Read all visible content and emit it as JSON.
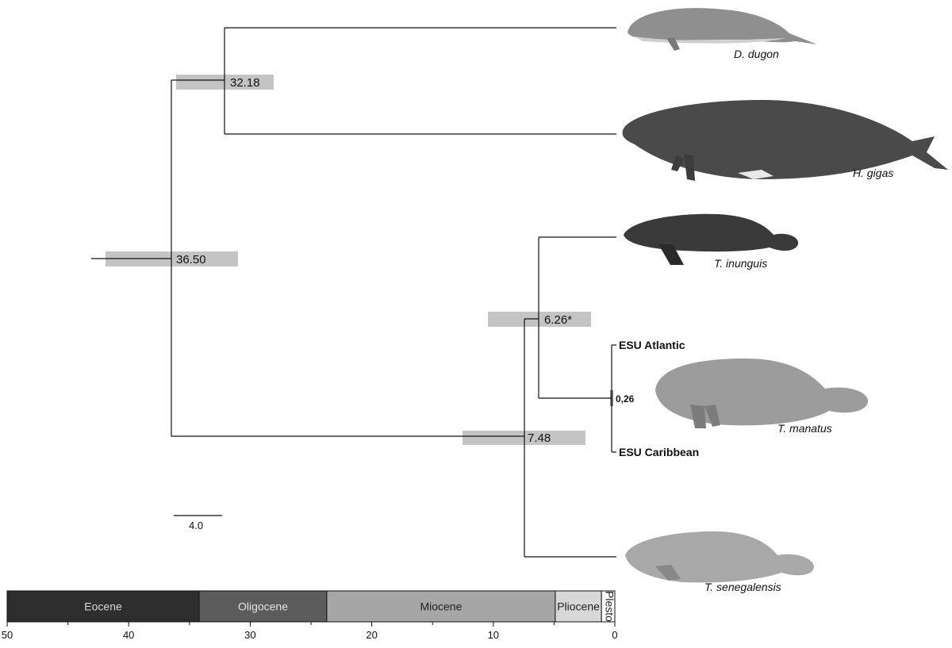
{
  "nodes": [
    {
      "id": "root",
      "age": 36.5,
      "label": "36.50"
    },
    {
      "id": "dugongidae",
      "age": 32.18,
      "label": "32.18"
    },
    {
      "id": "trichechus",
      "age": 7.48,
      "label": "7.48"
    },
    {
      "id": "inunguis_manatus",
      "age": 6.26,
      "label": "6.26*"
    },
    {
      "id": "manatus_esu",
      "label": "0,26"
    }
  ],
  "taxa": {
    "dugon": "D. dugon",
    "gigas": "H. gigas",
    "inunguis": "T. inunguis",
    "manatus": "T. manatus",
    "senegalensis": "T. senegalensis"
  },
  "esu": {
    "atlantic": "ESU Atlantic",
    "caribbean": "ESU Caribbean"
  },
  "scale_bar": "4.0",
  "epochs": [
    {
      "name": "Eocene",
      "start": 50,
      "end": 34.2,
      "color": "#2e2e2e",
      "text_color": "#d8d8d8"
    },
    {
      "name": "Oligocene",
      "start": 34.2,
      "end": 23.7,
      "color": "#5c5c5c",
      "text_color": "#e2e2e2"
    },
    {
      "name": "Miocene",
      "start": 23.7,
      "end": 4.9,
      "color": "#a6a6a6",
      "text_color": "#222222"
    },
    {
      "name": "Pliocene",
      "start": 4.9,
      "end": 1.1,
      "color": "#d8d8d8",
      "text_color": "#222222"
    },
    {
      "name": "Plesto",
      "start": 1.1,
      "end": 0,
      "color": "#ffffff",
      "text_color": "#222222"
    }
  ],
  "axis_ticks": [
    "50",
    "40",
    "30",
    "20",
    "10",
    "0"
  ]
}
